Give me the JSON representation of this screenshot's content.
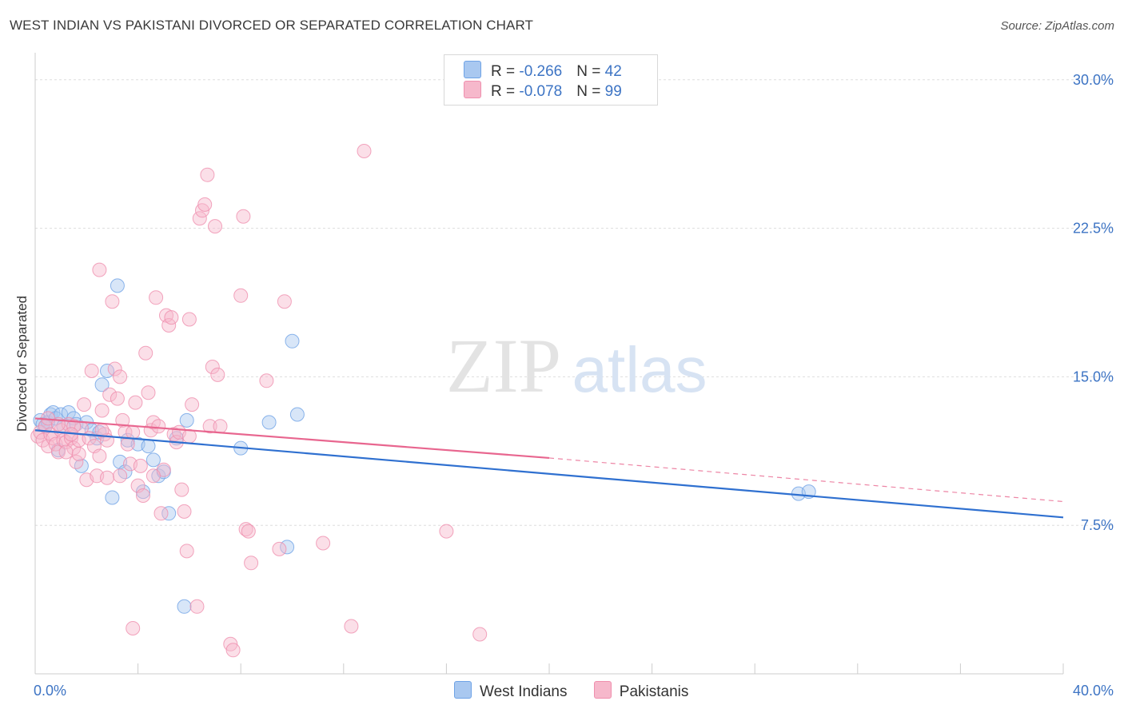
{
  "header": {
    "title": "WEST INDIAN VS PAKISTANI DIVORCED OR SEPARATED CORRELATION CHART",
    "source": "Source: ZipAtlas.com"
  },
  "watermark": {
    "zip": "ZIP",
    "atlas": "atlas"
  },
  "legend": {
    "rows": [
      {
        "r_label": "R = ",
        "r_value": "-0.266",
        "n_label": "N = ",
        "n_value": "42",
        "color": "#a9c8f0"
      },
      {
        "r_label": "R = ",
        "r_value": "-0.078",
        "n_label": "N = ",
        "n_value": "99",
        "color": "#f6b8cb"
      }
    ]
  },
  "bottom_legend": [
    {
      "label": "West Indians",
      "color": "#a9c8f0"
    },
    {
      "label": "Pakistanis",
      "color": "#f6b8cb"
    }
  ],
  "chart_data": {
    "type": "scatter",
    "title": "WEST INDIAN VS PAKISTANI DIVORCED OR SEPARATED CORRELATION CHART",
    "xlabel": "",
    "ylabel": "Divorced or Separated",
    "xlim": [
      0,
      40
    ],
    "ylim": [
      0,
      31
    ],
    "x_tick_labels": [
      {
        "value": 0,
        "label": "0.0%"
      },
      {
        "value": 40,
        "label": "40.0%"
      }
    ],
    "y_tick_labels": [
      {
        "value": 7.5,
        "label": "7.5%"
      },
      {
        "value": 15,
        "label": "15.0%"
      },
      {
        "value": 22.5,
        "label": "22.5%"
      },
      {
        "value": 30,
        "label": "30.0%"
      }
    ],
    "x_minor_ticks": [
      4,
      8,
      12,
      16,
      20,
      24,
      28,
      32,
      36,
      40
    ],
    "series": [
      {
        "name": "West Indians",
        "color": "#6fa3e6",
        "fill": "#a9c8f0",
        "line_color": "#2f70d0",
        "trend": {
          "x": [
            0,
            40
          ],
          "y": [
            12.3,
            7.9
          ]
        },
        "points": [
          [
            0.2,
            12.8
          ],
          [
            0.3,
            12.6
          ],
          [
            0.4,
            12.5
          ],
          [
            0.5,
            12.7
          ],
          [
            0.6,
            13.1
          ],
          [
            0.7,
            13.2
          ],
          [
            0.8,
            12.9
          ],
          [
            0.9,
            11.3
          ],
          [
            1.0,
            13.1
          ],
          [
            1.1,
            12.5
          ],
          [
            1.3,
            13.2
          ],
          [
            1.5,
            12.9
          ],
          [
            1.6,
            12.6
          ],
          [
            1.8,
            10.5
          ],
          [
            2.0,
            12.7
          ],
          [
            2.2,
            12.3
          ],
          [
            2.4,
            11.9
          ],
          [
            2.5,
            12.2
          ],
          [
            2.6,
            14.6
          ],
          [
            2.8,
            15.3
          ],
          [
            3.0,
            8.9
          ],
          [
            3.2,
            19.6
          ],
          [
            3.3,
            10.7
          ],
          [
            3.5,
            10.2
          ],
          [
            3.6,
            11.8
          ],
          [
            4.0,
            11.6
          ],
          [
            4.2,
            9.2
          ],
          [
            4.4,
            11.5
          ],
          [
            4.6,
            10.8
          ],
          [
            4.8,
            10.0
          ],
          [
            5.0,
            10.2
          ],
          [
            5.2,
            8.1
          ],
          [
            5.5,
            11.9
          ],
          [
            5.8,
            3.4
          ],
          [
            5.9,
            12.8
          ],
          [
            8.0,
            11.4
          ],
          [
            9.1,
            12.7
          ],
          [
            9.8,
            6.4
          ],
          [
            10.0,
            16.8
          ],
          [
            10.2,
            13.1
          ],
          [
            29.7,
            9.1
          ],
          [
            30.1,
            9.2
          ]
        ]
      },
      {
        "name": "Pakistanis",
        "color": "#ef8fae",
        "fill": "#f6b8cb",
        "line_color": "#e8668f",
        "trend": {
          "x": [
            0,
            20
          ],
          "y": [
            12.9,
            10.9
          ]
        },
        "trend_dashed": {
          "x": [
            20,
            40
          ],
          "y": [
            10.9,
            8.7
          ]
        },
        "points": [
          [
            0.1,
            12.0
          ],
          [
            0.2,
            12.2
          ],
          [
            0.3,
            11.8
          ],
          [
            0.4,
            12.5
          ],
          [
            0.5,
            11.5
          ],
          [
            0.6,
            12.1
          ],
          [
            0.7,
            11.9
          ],
          [
            0.8,
            11.6
          ],
          [
            0.9,
            11.2
          ],
          [
            1.0,
            12.3
          ],
          [
            1.1,
            11.8
          ],
          [
            1.2,
            11.7
          ],
          [
            1.3,
            12.6
          ],
          [
            1.4,
            11.9
          ],
          [
            1.5,
            11.4
          ],
          [
            1.6,
            10.7
          ],
          [
            1.7,
            11.8
          ],
          [
            1.8,
            12.4
          ],
          [
            1.9,
            13.6
          ],
          [
            2.0,
            9.8
          ],
          [
            2.1,
            11.9
          ],
          [
            2.2,
            15.3
          ],
          [
            2.3,
            11.5
          ],
          [
            2.4,
            10.0
          ],
          [
            2.5,
            20.4
          ],
          [
            2.6,
            13.3
          ],
          [
            2.7,
            12.1
          ],
          [
            2.8,
            11.8
          ],
          [
            2.9,
            14.1
          ],
          [
            3.0,
            18.8
          ],
          [
            3.1,
            15.4
          ],
          [
            3.2,
            13.9
          ],
          [
            3.3,
            15.0
          ],
          [
            3.4,
            12.8
          ],
          [
            3.5,
            12.2
          ],
          [
            3.6,
            11.6
          ],
          [
            3.7,
            10.6
          ],
          [
            3.8,
            2.3
          ],
          [
            3.9,
            13.7
          ],
          [
            4.0,
            9.5
          ],
          [
            4.1,
            10.5
          ],
          [
            4.2,
            9.0
          ],
          [
            4.3,
            16.2
          ],
          [
            4.4,
            14.2
          ],
          [
            4.5,
            12.3
          ],
          [
            4.6,
            12.7
          ],
          [
            4.7,
            19.0
          ],
          [
            4.8,
            12.5
          ],
          [
            4.9,
            8.1
          ],
          [
            5.0,
            10.3
          ],
          [
            5.1,
            18.1
          ],
          [
            5.2,
            17.6
          ],
          [
            5.3,
            18.0
          ],
          [
            5.4,
            12.1
          ],
          [
            5.5,
            11.7
          ],
          [
            5.6,
            12.2
          ],
          [
            5.7,
            9.3
          ],
          [
            5.8,
            8.2
          ],
          [
            5.9,
            6.2
          ],
          [
            6.0,
            17.9
          ],
          [
            6.1,
            13.6
          ],
          [
            6.3,
            3.4
          ],
          [
            6.4,
            23.0
          ],
          [
            6.5,
            23.4
          ],
          [
            6.6,
            23.7
          ],
          [
            6.7,
            25.2
          ],
          [
            6.8,
            12.5
          ],
          [
            6.9,
            15.5
          ],
          [
            7.0,
            22.6
          ],
          [
            7.1,
            15.1
          ],
          [
            7.2,
            12.5
          ],
          [
            7.6,
            1.5
          ],
          [
            7.7,
            1.2
          ],
          [
            8.0,
            19.1
          ],
          [
            8.1,
            23.1
          ],
          [
            8.2,
            7.3
          ],
          [
            8.3,
            7.2
          ],
          [
            8.4,
            5.6
          ],
          [
            9.0,
            14.8
          ],
          [
            9.5,
            6.3
          ],
          [
            9.7,
            18.8
          ],
          [
            11.2,
            6.6
          ],
          [
            12.3,
            2.4
          ],
          [
            12.8,
            26.4
          ],
          [
            16.0,
            7.2
          ],
          [
            17.3,
            2.0
          ],
          [
            1.2,
            11.2
          ],
          [
            0.5,
            12.9
          ],
          [
            2.5,
            11.0
          ],
          [
            3.8,
            12.2
          ],
          [
            1.5,
            12.5
          ],
          [
            2.8,
            9.9
          ],
          [
            0.9,
            12.6
          ],
          [
            1.7,
            11.1
          ],
          [
            3.3,
            10.0
          ],
          [
            4.6,
            10.0
          ],
          [
            6.0,
            12.0
          ],
          [
            1.4,
            12.1
          ],
          [
            2.6,
            12.3
          ]
        ]
      }
    ]
  }
}
